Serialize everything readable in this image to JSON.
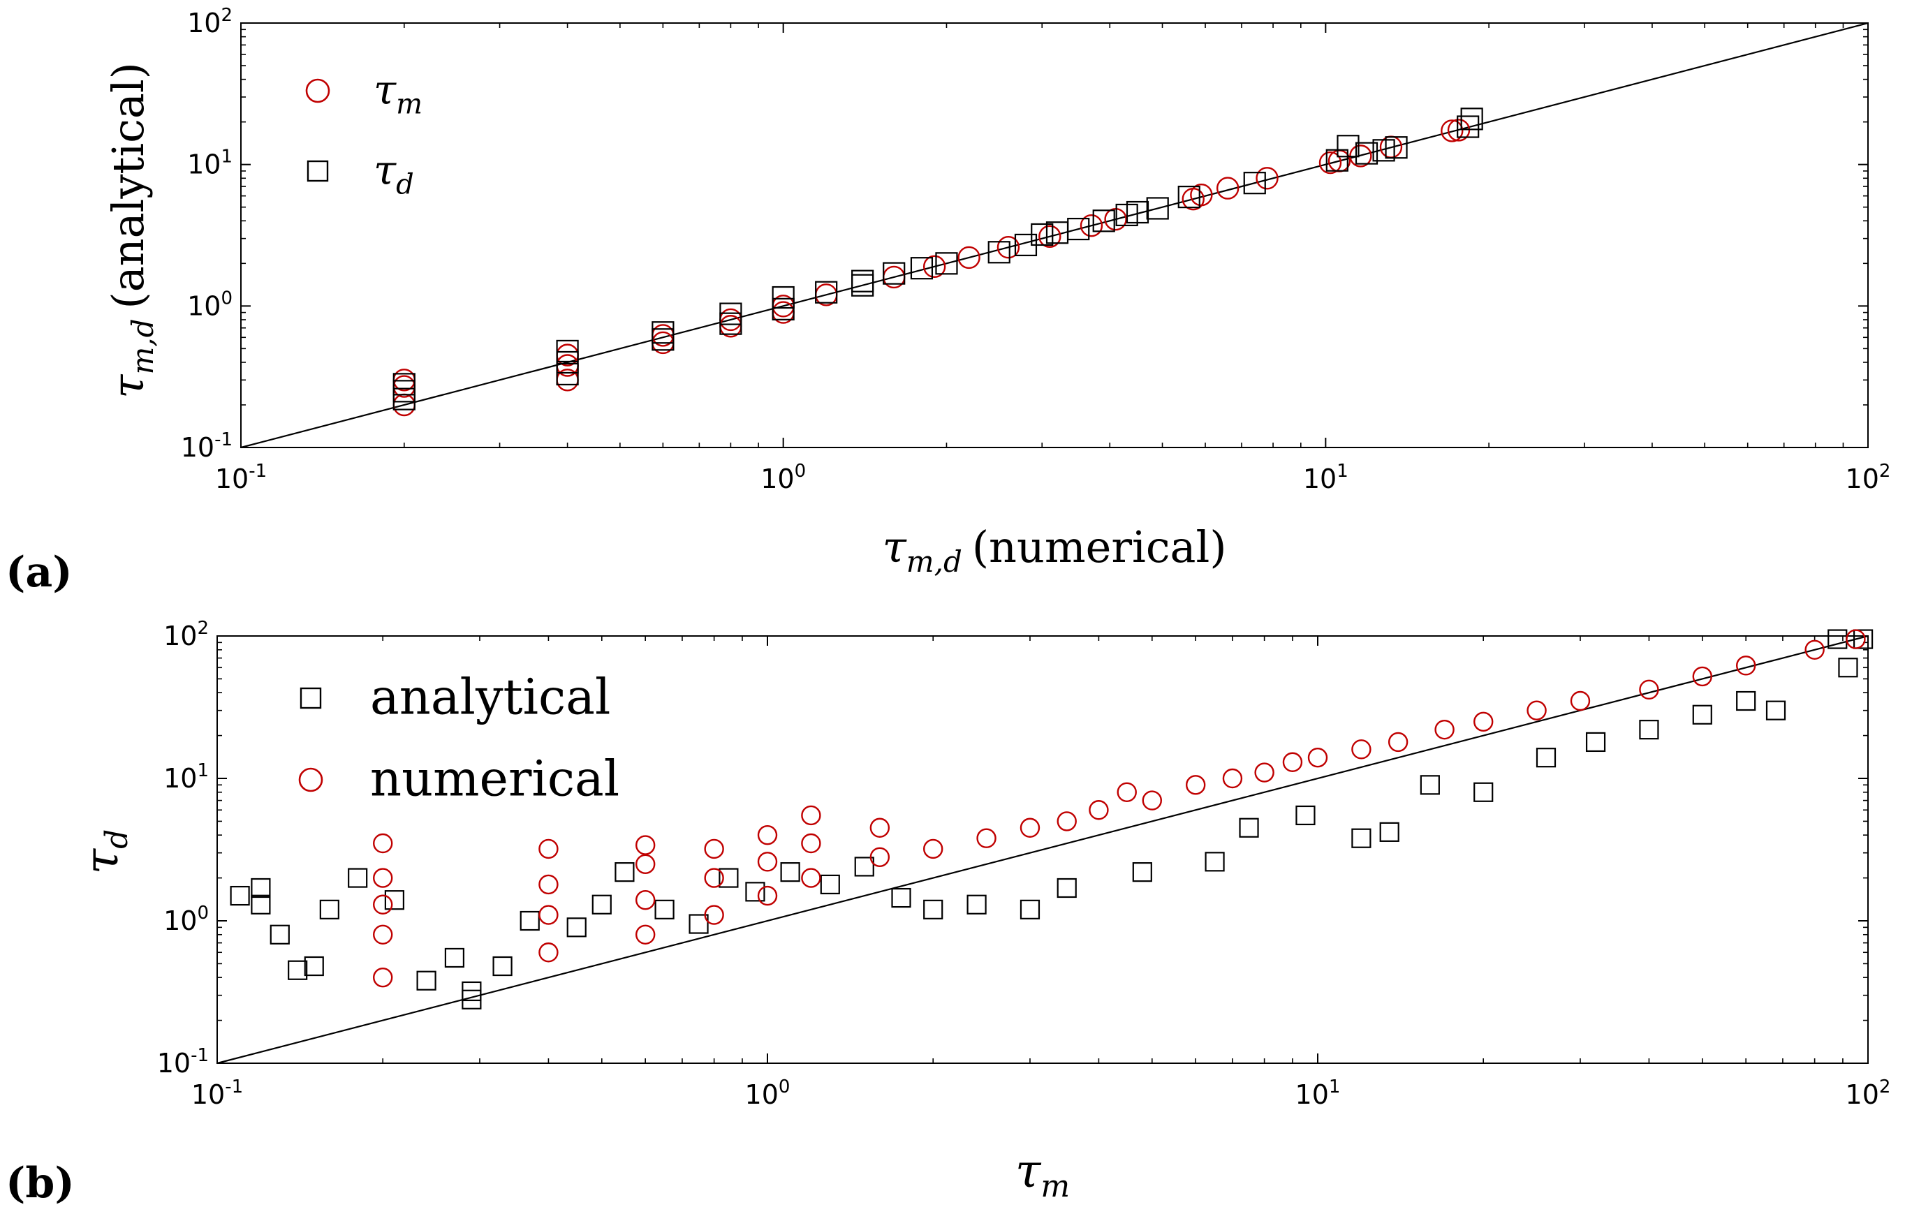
{
  "figure": {
    "panel_a_label": "(a)",
    "panel_b_label": "(b)"
  },
  "chart_data": [
    {
      "type": "scatter",
      "panel": "(a)",
      "scale": "log-log",
      "xlim": [
        0.1,
        100
      ],
      "ylim": [
        0.1,
        100
      ],
      "xticks": [
        0.1,
        1,
        10,
        100
      ],
      "yticks": [
        0.1,
        1,
        10,
        100
      ],
      "tick_labels": [
        {
          "base": "10",
          "exp": "-1"
        },
        {
          "base": "10",
          "exp": "0"
        },
        {
          "base": "10",
          "exp": "1"
        },
        {
          "base": "10",
          "exp": "2"
        }
      ],
      "xlabel": {
        "sym": "τ",
        "sub": "m,d",
        "text": "(numerical)"
      },
      "ylabel": {
        "sym": "τ",
        "sub": "m,d",
        "text": "(analytical)"
      },
      "legend_position": "top-left",
      "reference_line": {
        "from": [
          0.1,
          0.1
        ],
        "to": [
          100,
          100
        ],
        "color": "#000000"
      },
      "series": [
        {
          "name": {
            "sym": "τ",
            "sub": "m"
          },
          "marker": "circle",
          "color": "#c00000",
          "points": [
            [
              0.2,
              0.2
            ],
            [
              0.2,
              0.27
            ],
            [
              0.2,
              0.3
            ],
            [
              0.4,
              0.3
            ],
            [
              0.4,
              0.38
            ],
            [
              0.4,
              0.45
            ],
            [
              0.6,
              0.55
            ],
            [
              0.6,
              0.62
            ],
            [
              0.8,
              0.72
            ],
            [
              0.8,
              0.8
            ],
            [
              1.0,
              0.9
            ],
            [
              1.0,
              1.0
            ],
            [
              1.2,
              1.2
            ],
            [
              1.6,
              1.6
            ],
            [
              1.9,
              1.9
            ],
            [
              2.2,
              2.2
            ],
            [
              2.6,
              2.6
            ],
            [
              3.1,
              3.1
            ],
            [
              3.7,
              3.7
            ],
            [
              4.1,
              4.1
            ],
            [
              5.7,
              5.7
            ],
            [
              5.9,
              6.1
            ],
            [
              6.6,
              6.8
            ],
            [
              7.8,
              8.0
            ],
            [
              10.2,
              10.3
            ],
            [
              10.6,
              10.6
            ],
            [
              11.6,
              11.5
            ],
            [
              13.2,
              13.3
            ],
            [
              17.1,
              17.3
            ],
            [
              17.6,
              17.5
            ]
          ]
        },
        {
          "name": {
            "sym": "τ",
            "sub": "d"
          },
          "marker": "square",
          "color": "#000000",
          "points": [
            [
              0.2,
              0.22
            ],
            [
              0.2,
              0.25
            ],
            [
              0.2,
              0.28
            ],
            [
              0.4,
              0.33
            ],
            [
              0.4,
              0.4
            ],
            [
              0.4,
              0.48
            ],
            [
              0.6,
              0.58
            ],
            [
              0.6,
              0.65
            ],
            [
              0.8,
              0.75
            ],
            [
              0.8,
              0.88
            ],
            [
              1.0,
              0.95
            ],
            [
              1.0,
              1.15
            ],
            [
              1.2,
              1.25
            ],
            [
              1.4,
              1.4
            ],
            [
              1.4,
              1.5
            ],
            [
              1.6,
              1.7
            ],
            [
              1.8,
              1.85
            ],
            [
              2.0,
              2.0
            ],
            [
              2.5,
              2.4
            ],
            [
              2.8,
              2.7
            ],
            [
              3.0,
              3.2
            ],
            [
              3.2,
              3.3
            ],
            [
              3.5,
              3.5
            ],
            [
              3.9,
              4.0
            ],
            [
              4.3,
              4.4
            ],
            [
              4.5,
              4.6
            ],
            [
              4.9,
              4.9
            ],
            [
              5.6,
              5.9
            ],
            [
              7.4,
              7.4
            ],
            [
              10.5,
              10.7
            ],
            [
              11.0,
              13.5
            ],
            [
              11.9,
              12.0
            ],
            [
              12.8,
              12.6
            ],
            [
              13.5,
              13.2
            ],
            [
              18.3,
              18.5
            ],
            [
              18.6,
              21.0
            ]
          ]
        }
      ]
    },
    {
      "type": "scatter",
      "panel": "(b)",
      "scale": "log-log",
      "xlim": [
        0.1,
        100
      ],
      "ylim": [
        0.1,
        100
      ],
      "xticks": [
        0.1,
        1,
        10,
        100
      ],
      "yticks": [
        0.1,
        1,
        10,
        100
      ],
      "tick_labels": [
        {
          "base": "10",
          "exp": "-1"
        },
        {
          "base": "10",
          "exp": "0"
        },
        {
          "base": "10",
          "exp": "1"
        },
        {
          "base": "10",
          "exp": "2"
        }
      ],
      "xlabel": {
        "sym": "τ",
        "sub": "m",
        "text": ""
      },
      "ylabel": {
        "sym": "τ",
        "sub": "d",
        "text": ""
      },
      "legend_position": "top-left",
      "reference_line": {
        "from": [
          0.1,
          0.1
        ],
        "to": [
          100,
          100
        ],
        "color": "#000000"
      },
      "series": [
        {
          "name": "analytical",
          "marker": "square",
          "color": "#000000",
          "points": [
            [
              0.11,
              1.5
            ],
            [
              0.12,
              1.3
            ],
            [
              0.12,
              1.7
            ],
            [
              0.13,
              0.8
            ],
            [
              0.14,
              0.45
            ],
            [
              0.15,
              0.48
            ],
            [
              0.16,
              1.2
            ],
            [
              0.18,
              2.0
            ],
            [
              0.21,
              1.4
            ],
            [
              0.24,
              0.38
            ],
            [
              0.27,
              0.55
            ],
            [
              0.29,
              0.32
            ],
            [
              0.29,
              0.28
            ],
            [
              0.33,
              0.48
            ],
            [
              0.37,
              1.0
            ],
            [
              0.45,
              0.9
            ],
            [
              0.5,
              1.3
            ],
            [
              0.55,
              2.2
            ],
            [
              0.65,
              1.2
            ],
            [
              0.75,
              0.95
            ],
            [
              0.85,
              2.0
            ],
            [
              0.95,
              1.6
            ],
            [
              1.1,
              2.2
            ],
            [
              1.3,
              1.8
            ],
            [
              1.5,
              2.4
            ],
            [
              1.75,
              1.45
            ],
            [
              2.0,
              1.2
            ],
            [
              2.4,
              1.3
            ],
            [
              3.0,
              1.2
            ],
            [
              3.5,
              1.7
            ],
            [
              4.8,
              2.2
            ],
            [
              6.5,
              2.6
            ],
            [
              7.5,
              4.5
            ],
            [
              9.5,
              5.5
            ],
            [
              12.0,
              3.8
            ],
            [
              13.5,
              4.2
            ],
            [
              16.0,
              9.0
            ],
            [
              20.0,
              8.0
            ],
            [
              26.0,
              14.0
            ],
            [
              32.0,
              18.0
            ],
            [
              40.0,
              22.0
            ],
            [
              50.0,
              28.0
            ],
            [
              60.0,
              35.0
            ],
            [
              68.0,
              30.0
            ],
            [
              88.0,
              95.0
            ],
            [
              92.0,
              60.0
            ],
            [
              98.0,
              95.0
            ]
          ]
        },
        {
          "name": "numerical",
          "marker": "circle",
          "color": "#c00000",
          "points": [
            [
              0.2,
              0.4
            ],
            [
              0.2,
              0.8
            ],
            [
              0.2,
              1.3
            ],
            [
              0.2,
              2.0
            ],
            [
              0.2,
              3.5
            ],
            [
              0.4,
              0.6
            ],
            [
              0.4,
              1.1
            ],
            [
              0.4,
              1.8
            ],
            [
              0.4,
              3.2
            ],
            [
              0.6,
              0.8
            ],
            [
              0.6,
              1.4
            ],
            [
              0.6,
              2.5
            ],
            [
              0.6,
              3.4
            ],
            [
              0.8,
              1.1
            ],
            [
              0.8,
              2.0
            ],
            [
              0.8,
              3.2
            ],
            [
              1.0,
              1.5
            ],
            [
              1.0,
              2.6
            ],
            [
              1.0,
              4.0
            ],
            [
              1.2,
              2.0
            ],
            [
              1.2,
              3.5
            ],
            [
              1.2,
              5.5
            ],
            [
              1.6,
              2.8
            ],
            [
              1.6,
              4.5
            ],
            [
              2.0,
              3.2
            ],
            [
              2.5,
              3.8
            ],
            [
              3.0,
              4.5
            ],
            [
              3.5,
              5.0
            ],
            [
              4.0,
              6.0
            ],
            [
              4.5,
              8.0
            ],
            [
              5.0,
              7.0
            ],
            [
              6.0,
              9.0
            ],
            [
              7.0,
              10.0
            ],
            [
              8.0,
              11.0
            ],
            [
              9.0,
              13.0
            ],
            [
              10.0,
              14.0
            ],
            [
              12.0,
              16.0
            ],
            [
              14.0,
              18.0
            ],
            [
              17.0,
              22.0
            ],
            [
              20.0,
              25.0
            ],
            [
              25.0,
              30.0
            ],
            [
              30.0,
              35.0
            ],
            [
              40.0,
              42.0
            ],
            [
              50.0,
              52.0
            ],
            [
              60.0,
              62.0
            ],
            [
              80.0,
              80.0
            ],
            [
              95.0,
              95.0
            ]
          ]
        }
      ]
    }
  ]
}
